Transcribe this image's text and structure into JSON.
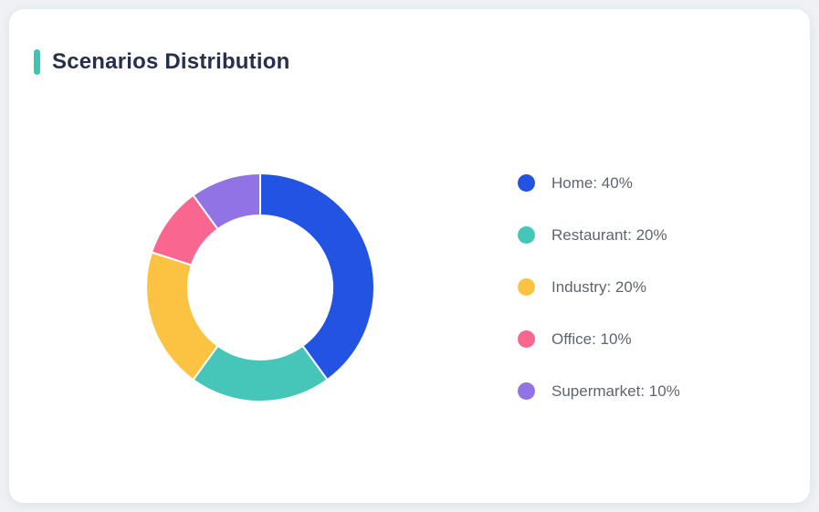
{
  "window": {
    "background_color": "#eff1f4",
    "card_background_color": "#ffffff"
  },
  "header": {
    "title": "Scenarios Distribution",
    "accent_color": "#3ec4b5",
    "title_color": "#25304a"
  },
  "legend_text_color": "#5e6470",
  "chart_data": {
    "type": "pie",
    "variant": "donut",
    "title": "Scenarios Distribution",
    "categories": [
      "Home",
      "Restaurant",
      "Industry",
      "Office",
      "Supermarket"
    ],
    "values": [
      40,
      20,
      20,
      10,
      10
    ],
    "unit": "%",
    "colors": [
      "#2253e3",
      "#45c6b8",
      "#fcc342",
      "#f9668f",
      "#9173e6"
    ],
    "start_angle_deg": 0,
    "direction": "clockwise",
    "inner_radius_ratio": 0.632,
    "slice_gap_stroke": "#ffffff",
    "legend_position": "right",
    "legend_labels": [
      "Home: 40%",
      "Restaurant: 20%",
      "Industry: 20%",
      "Office: 10%",
      "Supermarket: 10%"
    ]
  }
}
